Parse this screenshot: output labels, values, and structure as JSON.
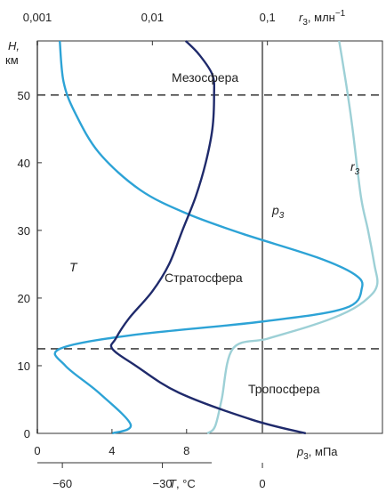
{
  "colors": {
    "temperature": "#1f2a6b",
    "ozone_pressure": "#2da3d6",
    "mixing_ratio": "#9dd0d6",
    "axis": "#333333",
    "zero_lines": "#777777"
  },
  "chart_data": {
    "type": "line",
    "y_axis": {
      "label": "H,",
      "unit": "км",
      "ticks": [
        "0",
        "10",
        "20",
        "30",
        "40",
        "50"
      ],
      "range": [
        0,
        58
      ]
    },
    "x_axes": {
      "top": {
        "scale": "log",
        "ticks": [
          "0,001",
          "0,01",
          "0,1"
        ],
        "label": "r",
        "label_sub": "3",
        "label_rest": ", млн",
        "label_sup": "−1",
        "range": [
          0.001,
          1
        ]
      },
      "bottom_pressure": {
        "ticks": [
          "0",
          "4",
          "8"
        ],
        "label": "p",
        "label_sub": "3",
        "label_rest": ", мПа",
        "range": [
          0,
          18.5
        ]
      },
      "bottom_temperature": {
        "ticks": [
          "−60",
          "−30",
          "0"
        ],
        "label": "T",
        "label_rest": ", °C",
        "range": [
          -67.5,
          36
        ]
      }
    },
    "regions": [
      "Мезосфера",
      "Стратосфера",
      "Тропосфера"
    ],
    "boundaries_km": [
      12.5,
      50
    ],
    "series": [
      {
        "name": "T",
        "axis": "bottom_temperature",
        "points": [
          [
            13,
            0
          ],
          [
            -3,
            2
          ],
          [
            -25,
            6
          ],
          [
            -38,
            10
          ],
          [
            -45,
            12.5
          ],
          [
            -44,
            14
          ],
          [
            -40,
            17
          ],
          [
            -33,
            21
          ],
          [
            -28,
            25
          ],
          [
            -24,
            30
          ],
          [
            -20,
            35
          ],
          [
            -17,
            40
          ],
          [
            -15,
            45
          ],
          [
            -14.5,
            50
          ],
          [
            -15,
            53
          ],
          [
            -19,
            56
          ],
          [
            -23,
            58
          ]
        ]
      },
      {
        "name": "p",
        "name_sub": "3",
        "axis": "bottom_pressure",
        "points": [
          [
            4,
            0
          ],
          [
            5,
            1.3
          ],
          [
            3.3,
            6
          ],
          [
            1.5,
            10
          ],
          [
            1.2,
            12.5
          ],
          [
            5,
            14.5
          ],
          [
            12,
            16.5
          ],
          [
            16.5,
            18.5
          ],
          [
            17.4,
            21.5
          ],
          [
            17,
            23.5
          ],
          [
            15,
            26
          ],
          [
            11,
            29.5
          ],
          [
            8,
            32.5
          ],
          [
            5.5,
            36
          ],
          [
            3.3,
            41.5
          ],
          [
            2,
            47.5
          ],
          [
            1.4,
            52
          ],
          [
            1.2,
            58
          ]
        ]
      },
      {
        "name": "r",
        "name_sub": "3",
        "axis": "top",
        "points": [
          [
            0.03,
            0
          ],
          [
            0.035,
            1
          ],
          [
            0.04,
            5
          ],
          [
            0.05,
            12.5
          ],
          [
            0.1,
            14
          ],
          [
            0.25,
            16
          ],
          [
            0.5,
            18
          ],
          [
            0.75,
            20
          ],
          [
            0.9,
            22
          ],
          [
            0.85,
            25
          ],
          [
            0.75,
            30
          ],
          [
            0.65,
            35
          ],
          [
            0.55,
            45
          ],
          [
            0.5,
            50
          ],
          [
            0.45,
            55
          ],
          [
            0.42,
            58
          ]
        ]
      }
    ]
  }
}
